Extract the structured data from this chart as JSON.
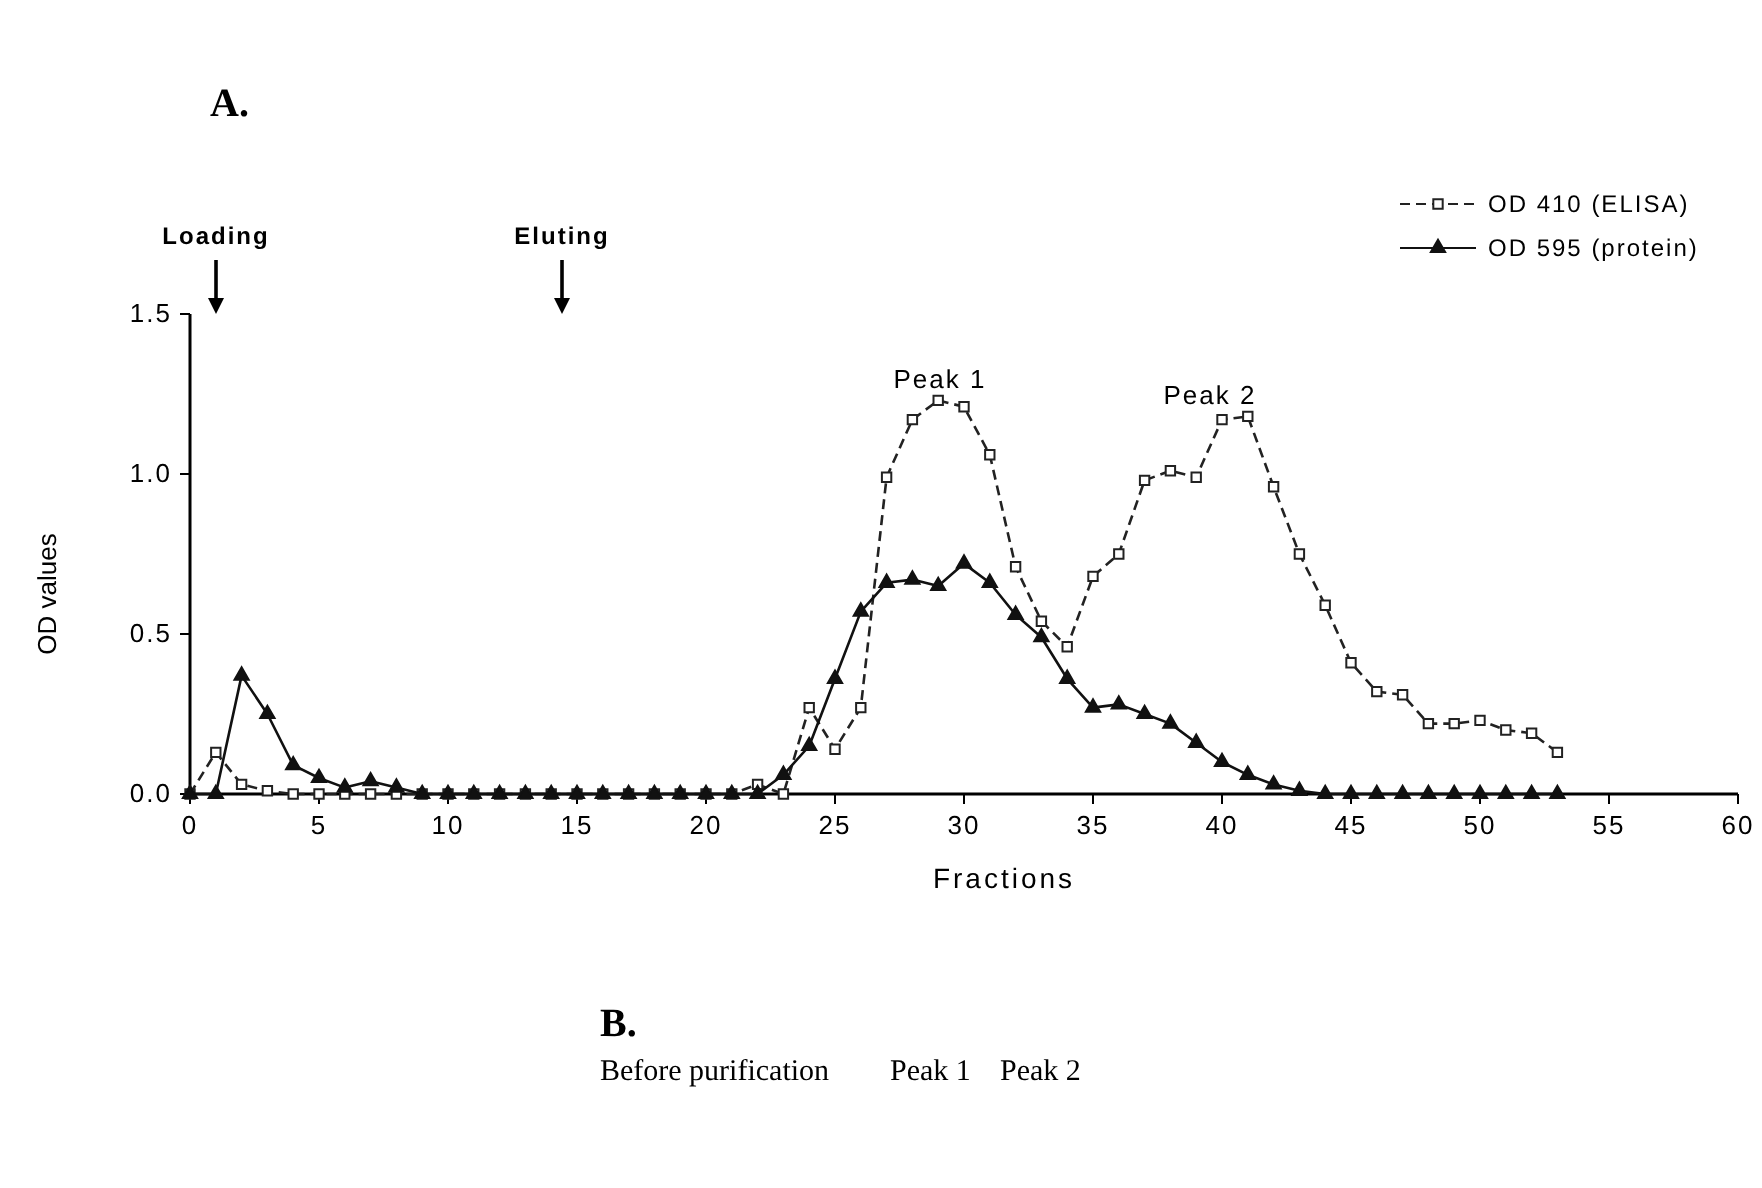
{
  "chart_data": {
    "type": "line",
    "title": "A.",
    "xlabel": "Fractions",
    "ylabel": "OD values",
    "x": [
      0,
      1,
      2,
      3,
      4,
      5,
      6,
      7,
      8,
      9,
      10,
      11,
      12,
      13,
      14,
      15,
      16,
      17,
      18,
      19,
      20,
      21,
      22,
      23,
      24,
      25,
      26,
      27,
      28,
      29,
      30,
      31,
      32,
      33,
      34,
      35,
      36,
      37,
      38,
      39,
      40,
      41,
      42,
      43,
      44,
      45,
      46,
      47,
      48,
      49,
      50,
      51,
      52,
      53
    ],
    "series": [
      {
        "name": "OD 410 (ELISA)",
        "color": "#222222",
        "marker": "square",
        "line_style": "dashed",
        "values": [
          0,
          0.13,
          0.03,
          0.01,
          0,
          0,
          0,
          0,
          0,
          0,
          0,
          0,
          0,
          0,
          0,
          0,
          0,
          0,
          0,
          0,
          0,
          0,
          0.03,
          0,
          0.27,
          0.14,
          0.27,
          0.99,
          1.17,
          1.23,
          1.21,
          1.06,
          0.71,
          0.54,
          0.46,
          0.68,
          0.75,
          0.98,
          1.01,
          0.99,
          1.17,
          1.18,
          0.96,
          0.75,
          0.59,
          0.41,
          0.32,
          0.31,
          0.22,
          0.22,
          0.23,
          0.2,
          0.19,
          0.13
        ]
      },
      {
        "name": "OD 595 (protein)",
        "color": "#111111",
        "marker": "triangle",
        "line_style": "solid",
        "values": [
          0,
          0,
          0.37,
          0.25,
          0.09,
          0.05,
          0.02,
          0.04,
          0.02,
          0,
          0,
          0,
          0,
          0,
          0,
          0,
          0,
          0,
          0,
          0,
          0,
          0,
          0,
          0.06,
          0.15,
          0.36,
          0.57,
          0.66,
          0.67,
          0.65,
          0.72,
          0.66,
          0.56,
          0.49,
          0.36,
          0.27,
          0.28,
          0.25,
          0.22,
          0.16,
          0.1,
          0.06,
          0.03,
          0.01,
          0,
          0,
          0,
          0,
          0,
          0,
          0,
          0,
          0,
          0
        ]
      }
    ],
    "xlim": [
      0,
      60
    ],
    "xticks": [
      0,
      5,
      10,
      15,
      20,
      25,
      30,
      35,
      40,
      45,
      50,
      55,
      60
    ],
    "ylim": [
      0,
      1.5
    ],
    "yticks": [
      {
        "value": 0,
        "label": "0.0"
      },
      {
        "value": 0.5,
        "label": "0.5"
      },
      {
        "value": 1,
        "label": "1.0"
      },
      {
        "value": 1.5,
        "label": "1.5"
      }
    ],
    "grid": false,
    "legend": "top right",
    "annotations": [
      "Loading",
      "Eluting",
      "Peak 1",
      "Peak 2",
      "B.",
      "Before purification",
      "Peak 1",
      "Peak 2"
    ]
  }
}
